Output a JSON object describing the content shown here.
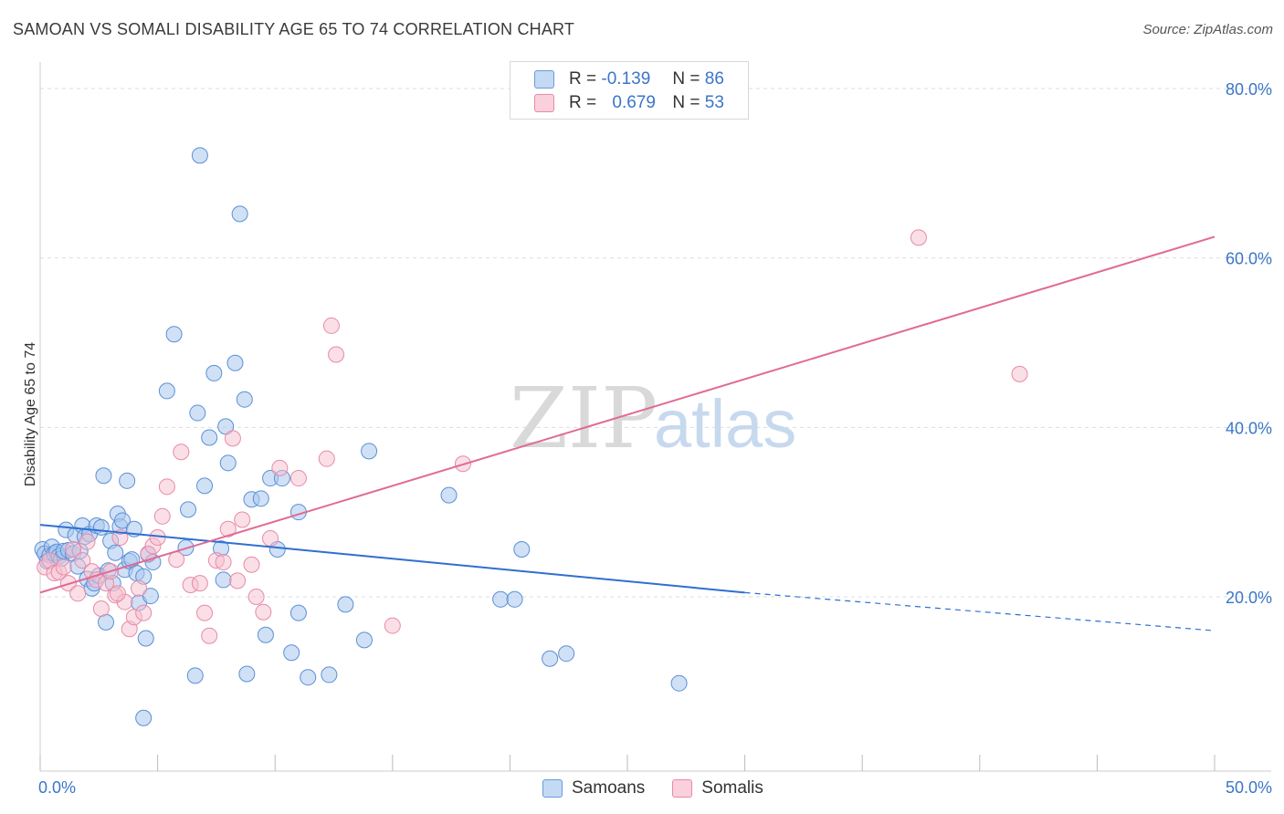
{
  "title": "SAMOAN VS SOMALI DISABILITY AGE 65 TO 74 CORRELATION CHART",
  "source": "Source: ZipAtlas.com",
  "watermark": {
    "zip": "ZIP",
    "atlas": "atlas"
  },
  "legend": {
    "rows": [
      {
        "r_label": "R =",
        "r_value": "-0.139",
        "n_label": "N =",
        "n_value": "86"
      },
      {
        "r_label": "R =",
        "r_value": "0.679",
        "n_label": "N =",
        "n_value": "53"
      }
    ]
  },
  "bottom_legend": {
    "samoans": "Samoans",
    "somalis": "Somalis"
  },
  "colors": {
    "samoans_fill": "#a9c8ef",
    "samoans_stroke": "#5b8fd6",
    "samoans_line": "#2f6fd0",
    "somalis_fill": "#f6bfd0",
    "somalis_stroke": "#e88aa8",
    "somalis_line": "#e06a94",
    "axis_label": "#3a76c8",
    "grid": "#dddddd"
  },
  "chart_data": {
    "type": "scatter",
    "xlabel": "",
    "ylabel": "Disability Age 65 to 74",
    "xlim": [
      0,
      50
    ],
    "ylim": [
      0,
      80
    ],
    "x_tick_labels": [
      "0.0%",
      "50.0%"
    ],
    "y_ticks": [
      20,
      40,
      60,
      80
    ],
    "y_tick_labels": [
      "20.0%",
      "40.0%",
      "60.0%",
      "80.0%"
    ],
    "grid": true,
    "legend_position": "top-center",
    "series": [
      {
        "name": "Samoans",
        "r": -0.139,
        "n": 86,
        "trend": {
          "x0": 0,
          "y0": 28.5,
          "x1": 30,
          "y1": 20.5,
          "dashed_to_x": 50,
          "dashed_to_y": 16.0
        },
        "points": [
          [
            0.1,
            25.6
          ],
          [
            0.2,
            25.1
          ],
          [
            0.3,
            24.2
          ],
          [
            0.4,
            24.9
          ],
          [
            0.5,
            25.9
          ],
          [
            0.6,
            25.1
          ],
          [
            0.7,
            25.3
          ],
          [
            0.8,
            24.8
          ],
          [
            0.9,
            24.5
          ],
          [
            1.0,
            25.4
          ],
          [
            1.1,
            27.9
          ],
          [
            1.2,
            25.5
          ],
          [
            1.4,
            25.1
          ],
          [
            1.5,
            27.3
          ],
          [
            1.6,
            23.6
          ],
          [
            1.7,
            25.4
          ],
          [
            1.8,
            28.4
          ],
          [
            1.9,
            27.1
          ],
          [
            2.0,
            22.1
          ],
          [
            2.1,
            27.4
          ],
          [
            2.2,
            21.0
          ],
          [
            2.3,
            21.6
          ],
          [
            2.4,
            28.4
          ],
          [
            2.5,
            22.5
          ],
          [
            2.6,
            28.2
          ],
          [
            2.7,
            34.3
          ],
          [
            2.8,
            17.0
          ],
          [
            2.9,
            23.1
          ],
          [
            3.0,
            26.6
          ],
          [
            3.1,
            21.6
          ],
          [
            3.2,
            25.2
          ],
          [
            3.3,
            29.8
          ],
          [
            3.4,
            28.3
          ],
          [
            3.5,
            29.0
          ],
          [
            3.6,
            23.2
          ],
          [
            3.7,
            33.7
          ],
          [
            3.8,
            24.2
          ],
          [
            3.9,
            24.4
          ],
          [
            4.0,
            28.0
          ],
          [
            4.1,
            22.8
          ],
          [
            4.2,
            19.3
          ],
          [
            4.4,
            22.4
          ],
          [
            4.5,
            15.1
          ],
          [
            4.6,
            25.0
          ],
          [
            4.7,
            20.1
          ],
          [
            4.8,
            24.1
          ],
          [
            5.4,
            44.3
          ],
          [
            5.7,
            51.0
          ],
          [
            6.2,
            25.8
          ],
          [
            6.3,
            30.3
          ],
          [
            6.6,
            10.7
          ],
          [
            6.7,
            41.7
          ],
          [
            6.8,
            72.1
          ],
          [
            7.0,
            33.1
          ],
          [
            7.2,
            38.8
          ],
          [
            7.4,
            46.4
          ],
          [
            7.8,
            22.0
          ],
          [
            7.9,
            40.1
          ],
          [
            8.0,
            35.8
          ],
          [
            8.3,
            47.6
          ],
          [
            8.5,
            65.2
          ],
          [
            8.7,
            43.3
          ],
          [
            9.0,
            31.5
          ],
          [
            9.4,
            31.6
          ],
          [
            9.6,
            15.5
          ],
          [
            9.8,
            34.0
          ],
          [
            10.1,
            25.6
          ],
          [
            10.3,
            34.0
          ],
          [
            11.0,
            18.1
          ],
          [
            11.4,
            10.5
          ],
          [
            12.3,
            10.8
          ],
          [
            13.0,
            19.1
          ],
          [
            13.8,
            14.9
          ],
          [
            14.0,
            37.2
          ],
          [
            17.4,
            32.0
          ],
          [
            19.6,
            19.7
          ],
          [
            20.2,
            19.7
          ],
          [
            20.5,
            25.6
          ],
          [
            21.7,
            12.7
          ],
          [
            22.4,
            13.3
          ],
          [
            27.2,
            9.8
          ],
          [
            10.7,
            13.4
          ],
          [
            11.0,
            30.0
          ],
          [
            7.7,
            25.7
          ],
          [
            8.8,
            10.9
          ],
          [
            4.4,
            5.7
          ]
        ]
      },
      {
        "name": "Somalis",
        "r": 0.679,
        "n": 53,
        "trend": {
          "x0": 0,
          "y0": 20.5,
          "x1": 50,
          "y1": 62.5
        },
        "points": [
          [
            0.2,
            23.5
          ],
          [
            0.4,
            24.3
          ],
          [
            0.6,
            22.8
          ],
          [
            0.8,
            22.9
          ],
          [
            1.0,
            23.5
          ],
          [
            1.2,
            21.6
          ],
          [
            1.4,
            25.6
          ],
          [
            1.6,
            20.4
          ],
          [
            1.8,
            24.3
          ],
          [
            2.0,
            26.5
          ],
          [
            2.2,
            23.0
          ],
          [
            2.4,
            22.0
          ],
          [
            2.6,
            18.6
          ],
          [
            2.8,
            21.6
          ],
          [
            3.0,
            23.0
          ],
          [
            3.2,
            20.2
          ],
          [
            3.4,
            27.0
          ],
          [
            3.6,
            19.4
          ],
          [
            3.8,
            16.2
          ],
          [
            4.0,
            17.6
          ],
          [
            4.2,
            21.0
          ],
          [
            4.4,
            18.1
          ],
          [
            4.6,
            25.1
          ],
          [
            4.8,
            26.0
          ],
          [
            5.0,
            27.0
          ],
          [
            5.2,
            29.5
          ],
          [
            5.4,
            33.0
          ],
          [
            5.8,
            24.4
          ],
          [
            6.0,
            37.1
          ],
          [
            6.4,
            21.4
          ],
          [
            6.8,
            21.6
          ],
          [
            7.0,
            18.1
          ],
          [
            7.2,
            15.4
          ],
          [
            7.5,
            24.3
          ],
          [
            7.8,
            24.1
          ],
          [
            8.0,
            28.0
          ],
          [
            8.2,
            38.7
          ],
          [
            8.4,
            21.9
          ],
          [
            8.6,
            29.1
          ],
          [
            9.0,
            23.8
          ],
          [
            9.2,
            20.0
          ],
          [
            9.5,
            18.2
          ],
          [
            9.8,
            26.9
          ],
          [
            10.2,
            35.2
          ],
          [
            11.0,
            34.0
          ],
          [
            12.2,
            36.3
          ],
          [
            12.4,
            52.0
          ],
          [
            12.6,
            48.6
          ],
          [
            15.0,
            16.6
          ],
          [
            18.0,
            35.7
          ],
          [
            37.4,
            62.4
          ],
          [
            41.7,
            46.3
          ],
          [
            3.3,
            20.4
          ]
        ]
      }
    ]
  }
}
